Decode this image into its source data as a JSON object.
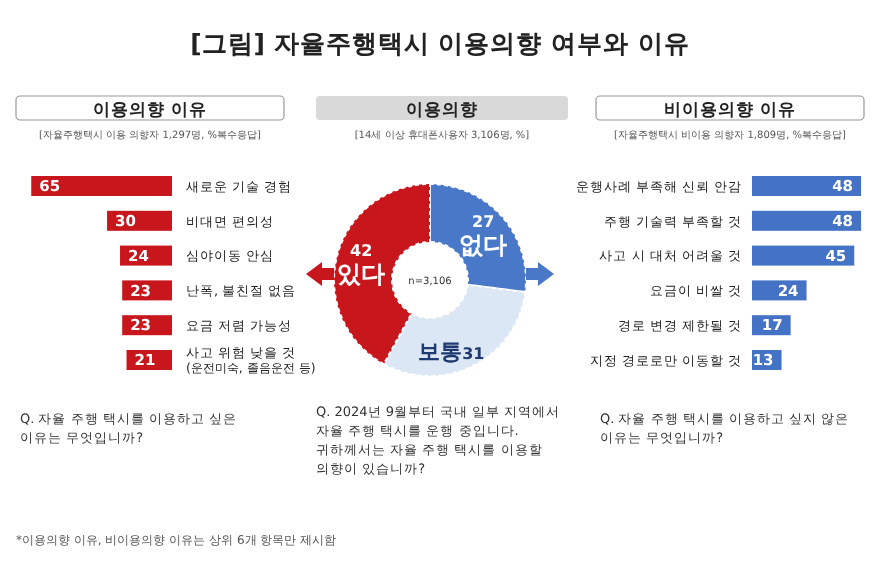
{
  "chart_data": [
    {
      "type": "other",
      "title": "[그림] 자율주행택시 이용의향 여부와 이유",
      "annotations": [
        "*이용의향 이유, 비이용의향 이유는 상위 6개 항목만 제시함"
      ]
    },
    {
      "type": "bar",
      "orientation": "horizontal",
      "title": "이용의향 이유",
      "subtitle": "[자율주행택시 이용 의향자 1,297명, %복수응답]",
      "categories": [
        "새로운 기술 경험",
        "비대면 편의성",
        "심야이동 안심",
        "난폭, 불친절 없음",
        "요금 저렴 가능성",
        "사고 위험 낮을 것\n(운전미숙, 졸음운전 등)"
      ],
      "values": [
        65,
        30,
        24,
        23,
        23,
        21
      ],
      "color": "#c8161d",
      "tick_labels": false,
      "data_labels": true,
      "annotations": [
        "Q. 자율 주행 택시를 이용하고 싶은 이유는 무엇입니까?"
      ]
    },
    {
      "type": "donut",
      "title": "이용의향",
      "subtitle": "[14세 이상 휴대폰사용자 3,106명, %]",
      "categories": [
        "없다",
        "보통",
        "있다"
      ],
      "values": [
        27,
        31,
        42
      ],
      "colors": [
        "#4a78c8",
        "#dce7f6",
        "#c8161d"
      ],
      "data_labels": true,
      "annotations": [
        "n=3,106",
        "Q. 2024년 9월부터 국내 일부 지역에서 자율 주행 택시를 운행 중입니다.",
        "귀하께서는 자율 주행 택시를 이용할 의향이 있습니까?"
      ]
    },
    {
      "type": "bar",
      "orientation": "horizontal",
      "title": "비이용의향 이유",
      "subtitle": "[자율주행택시 비이용 의향자 1,809명, %복수응답]",
      "categories": [
        "운행사례 부족해 신뢰 안감",
        "주행 기술력 부족할 것",
        "사고 시 대처 어려울 것",
        "요금이 비쌀 것",
        "경로 변경 제한될 것",
        "지정 경로로만 이동할 것"
      ],
      "values": [
        48,
        48,
        45,
        24,
        17,
        13
      ],
      "color": "#4472c4",
      "tick_labels": false,
      "data_labels": true,
      "annotations": [
        "Q. 자율 주행 택시를 이용하고 싶지 않은 이유는 무엇입니까?"
      ]
    }
  ]
}
